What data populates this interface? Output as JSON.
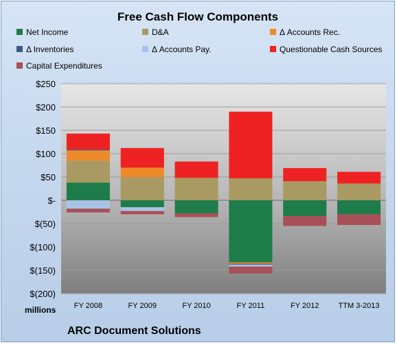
{
  "chart_data": {
    "type": "bar",
    "stacked": true,
    "title": "Free Cash Flow Components",
    "ylabel": "millions",
    "ylim": [
      -200,
      250
    ],
    "yticks": [
      250,
      200,
      150,
      100,
      50,
      0,
      -50,
      -100,
      -150,
      -200
    ],
    "ytick_labels": [
      "$250",
      "$200",
      "$150",
      "$100",
      "$50",
      "$-",
      "$(50)",
      "$(100)",
      "$(150)",
      "$(200)"
    ],
    "categories": [
      "FY 2008",
      "FY 2009",
      "FY 2010",
      "FY 2011",
      "FY 2012",
      "TTM 3-2013"
    ],
    "legend_position": "top",
    "series": [
      {
        "name": "Net Income",
        "color": "#1e7c4a",
        "values": [
          38,
          -15,
          -28,
          -133,
          -34,
          -30
        ]
      },
      {
        "name": "D&A",
        "color": "#a99a63",
        "values": [
          47,
          50,
          48,
          47,
          41,
          36
        ]
      },
      {
        "name": "Δ Accounts Rec.",
        "color": "#ef8a2a",
        "values": [
          22,
          20,
          0,
          -3,
          0,
          0
        ]
      },
      {
        "name": "Δ Inventories",
        "color": "#3d5a80",
        "values": [
          2,
          0,
          0,
          -2,
          0,
          0
        ]
      },
      {
        "name": "Δ Accounts Pay.",
        "color": "#a9c3e8",
        "values": [
          -18,
          -8,
          0,
          -4,
          0,
          0
        ]
      },
      {
        "name": "Questionable Cash Sources",
        "color": "#ee2222",
        "values": [
          34,
          42,
          35,
          143,
          28,
          25
        ]
      },
      {
        "name": "Capital Expenditures",
        "color": "#a85058",
        "values": [
          -8,
          -7,
          -8,
          -15,
          -21,
          -23
        ]
      }
    ]
  },
  "caption": "ARC Document Solutions"
}
